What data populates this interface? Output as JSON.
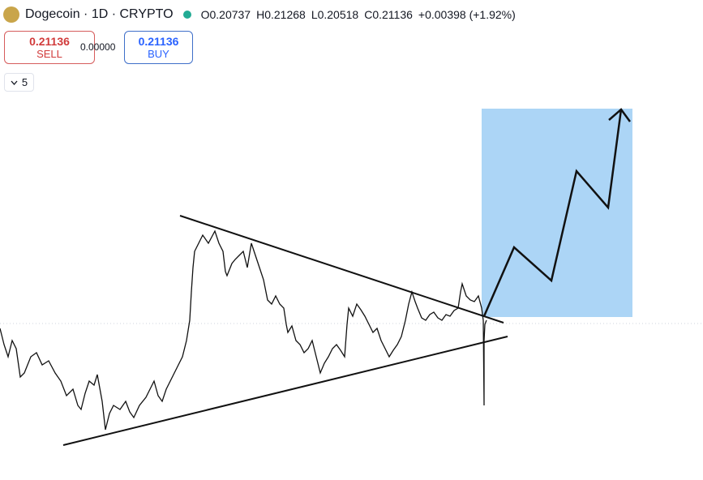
{
  "header": {
    "symbol": "Dogecoin · 1D · CRYPTO",
    "open": "O0.20737",
    "high": "H0.21268",
    "low": "L0.20518",
    "close": "C0.21136",
    "change": "+0.00398 (+1.92%)"
  },
  "trade": {
    "sell_price": "0.21136",
    "sell_label": "SELL",
    "spread": "0.00000",
    "buy_price": "0.21136",
    "buy_label": "BUY"
  },
  "indicators": {
    "count": "5"
  }
}
